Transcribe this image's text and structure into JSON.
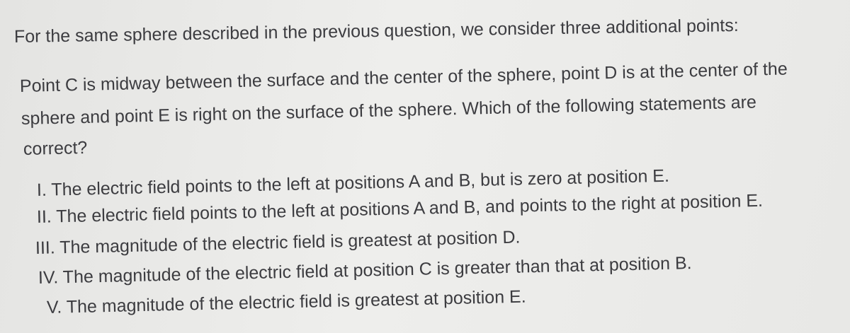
{
  "intro": "For the same sphere described in the previous question, we consider three additional points:",
  "question": {
    "lines": [
      "Point C is midway between the surface and the center of the sphere, point D is at the center of the",
      "sphere and point E is right on the surface of the sphere. Which of the following statements are",
      "correct?"
    ]
  },
  "statements": [
    "I. The electric field points to the left at positions A and B, but is zero at position E.",
    "II. The electric field points to the left at positions A and B, and points to the right at position E.",
    "III. The magnitude of the electric field is greatest at position D.",
    "IV. The magnitude of the electric field at position C is greater than that at position B.",
    "V. The magnitude of the electric field is greatest at position E."
  ]
}
